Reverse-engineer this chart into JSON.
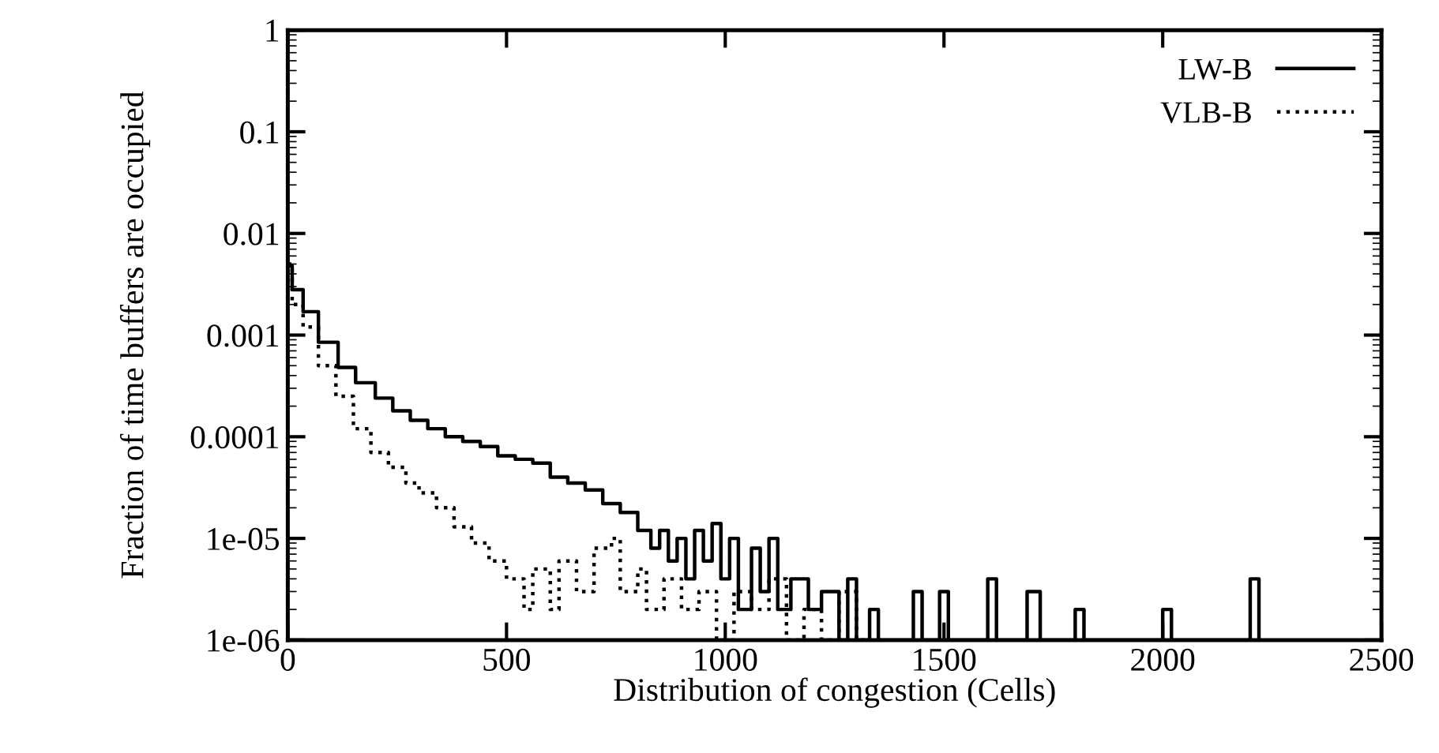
{
  "chart_data": {
    "type": "step",
    "xlabel": "Distribution of congestion (Cells)",
    "ylabel": "Fraction of time buffers are occupied",
    "log": "y",
    "xlim": [
      0,
      2500
    ],
    "xticks": [
      0,
      500,
      1000,
      1500,
      2000,
      2500
    ],
    "ylim": [
      1e-06,
      1
    ],
    "yticks": [
      {
        "value": 1,
        "label": "1"
      },
      {
        "value": 0.1,
        "label": "0.1"
      },
      {
        "value": 0.01,
        "label": "0.01"
      },
      {
        "value": 0.001,
        "label": "0.001"
      },
      {
        "value": 0.0001,
        "label": "0.0001"
      },
      {
        "value": 1e-05,
        "label": "1e-05"
      },
      {
        "value": 1e-06,
        "label": "1e-06"
      }
    ],
    "legend": "top right",
    "grid": false,
    "marker": "none",
    "series": [
      {
        "name": "LW-B",
        "color": "#000000",
        "line_style": "solid",
        "x": [
          0,
          10,
          35,
          70,
          115,
          155,
          200,
          240,
          280,
          320,
          360,
          400,
          440,
          480,
          520,
          560,
          600,
          640,
          680,
          720,
          760,
          800,
          830,
          850,
          870,
          890,
          910,
          930,
          950,
          970,
          990,
          1010,
          1030,
          1060,
          1080,
          1100,
          1120,
          1150,
          1170,
          1190,
          1220,
          1260,
          1280,
          1300,
          1330,
          1350,
          1430,
          1450,
          1490,
          1510,
          1600,
          1620,
          1690,
          1720,
          1800,
          1820,
          2000,
          2020,
          2200,
          2220
        ],
        "values": [
          0.0048,
          0.0028,
          0.0017,
          0.00085,
          0.00048,
          0.00034,
          0.00024,
          0.00018,
          0.000145,
          0.00012,
          0.0001,
          9e-05,
          8e-05,
          6.5e-05,
          6e-05,
          5.5e-05,
          4e-05,
          3.5e-05,
          3e-05,
          2.2e-05,
          1.8e-05,
          1.2e-05,
          8e-06,
          1.2e-05,
          6e-06,
          1e-05,
          4e-06,
          1.2e-05,
          6e-06,
          1.4e-05,
          4e-06,
          1e-05,
          2e-06,
          8e-06,
          3e-06,
          1e-05,
          2e-06,
          4e-06,
          4e-06,
          2e-06,
          3e-06,
          1e-06,
          4e-06,
          1e-06,
          2e-06,
          1e-06,
          3e-06,
          1e-06,
          3e-06,
          1e-06,
          4e-06,
          1e-06,
          3e-06,
          1e-06,
          2e-06,
          1e-06,
          2e-06,
          1e-06,
          4e-06,
          1e-06
        ]
      },
      {
        "name": "VLB-B",
        "color": "#000000",
        "line_style": "dotted",
        "x": [
          0,
          10,
          35,
          70,
          110,
          150,
          190,
          230,
          270,
          300,
          340,
          380,
          420,
          460,
          500,
          540,
          560,
          600,
          620,
          660,
          700,
          740,
          760,
          800,
          820,
          860,
          900,
          940,
          980,
          1020,
          1060,
          1100,
          1140,
          1180,
          1220,
          1260,
          1300,
          1320
        ],
        "values": [
          0.005,
          0.002,
          0.0012,
          0.0005,
          0.00025,
          0.00012,
          7e-05,
          5e-05,
          3.5e-05,
          2.8e-05,
          2e-05,
          1.3e-05,
          9e-06,
          6e-06,
          4e-06,
          2e-06,
          5e-06,
          2e-06,
          6e-06,
          3e-06,
          8e-06,
          1e-05,
          3e-06,
          5e-06,
          2e-06,
          4e-06,
          2e-06,
          3e-06,
          1e-06,
          3e-06,
          2e-06,
          4e-06,
          1e-06,
          2e-06,
          1e-06,
          3e-06,
          1e-06,
          1e-06
        ]
      }
    ]
  }
}
